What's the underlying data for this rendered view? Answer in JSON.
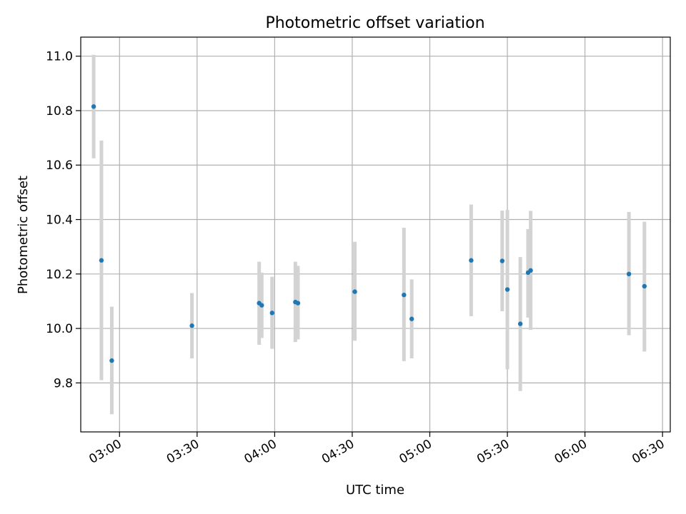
{
  "chart_data": {
    "type": "scatter",
    "title": "Photometric offset variation",
    "xlabel": "UTC time",
    "ylabel": "Photometric offset",
    "x_unit": "time of day (HH:MM, UTC)",
    "xlim": [
      "02:45",
      "06:33"
    ],
    "ylim": [
      9.62,
      11.07
    ],
    "x_ticks": [
      "03:00",
      "03:30",
      "04:00",
      "04:30",
      "05:00",
      "05:30",
      "06:00",
      "06:30"
    ],
    "y_ticks": [
      9.8,
      10.0,
      10.2,
      10.4,
      10.6,
      10.8,
      11.0
    ],
    "grid": true,
    "point_color": "#1f77b4",
    "errorbar_color": "#d3d3d3",
    "points": [
      {
        "x": "02:50",
        "y": 10.815,
        "err_low": 10.625,
        "err_high": 11.005
      },
      {
        "x": "02:53",
        "y": 10.25,
        "err_low": 9.81,
        "err_high": 10.69
      },
      {
        "x": "02:57",
        "y": 9.882,
        "err_low": 9.685,
        "err_high": 10.08
      },
      {
        "x": "03:28",
        "y": 10.01,
        "err_low": 9.89,
        "err_high": 10.13
      },
      {
        "x": "03:54",
        "y": 10.093,
        "err_low": 9.94,
        "err_high": 10.245
      },
      {
        "x": "03:55",
        "y": 10.085,
        "err_low": 9.965,
        "err_high": 10.205
      },
      {
        "x": "03:59",
        "y": 10.057,
        "err_low": 9.925,
        "err_high": 10.19
      },
      {
        "x": "04:08",
        "y": 10.097,
        "err_low": 9.95,
        "err_high": 10.245
      },
      {
        "x": "04:09",
        "y": 10.093,
        "err_low": 9.96,
        "err_high": 10.23
      },
      {
        "x": "04:31",
        "y": 10.135,
        "err_low": 9.955,
        "err_high": 10.318
      },
      {
        "x": "04:50",
        "y": 10.123,
        "err_low": 9.88,
        "err_high": 10.37
      },
      {
        "x": "04:53",
        "y": 10.035,
        "err_low": 9.89,
        "err_high": 10.18
      },
      {
        "x": "05:16",
        "y": 10.25,
        "err_low": 10.045,
        "err_high": 10.455
      },
      {
        "x": "05:28",
        "y": 10.248,
        "err_low": 10.063,
        "err_high": 10.433
      },
      {
        "x": "05:30",
        "y": 10.143,
        "err_low": 9.85,
        "err_high": 10.435
      },
      {
        "x": "05:35",
        "y": 10.017,
        "err_low": 9.77,
        "err_high": 10.262
      },
      {
        "x": "05:38",
        "y": 10.205,
        "err_low": 10.04,
        "err_high": 10.365
      },
      {
        "x": "05:39",
        "y": 10.213,
        "err_low": 9.995,
        "err_high": 10.432
      },
      {
        "x": "06:17",
        "y": 10.2,
        "err_low": 9.975,
        "err_high": 10.428
      },
      {
        "x": "06:23",
        "y": 10.155,
        "err_low": 9.915,
        "err_high": 10.392
      }
    ]
  }
}
